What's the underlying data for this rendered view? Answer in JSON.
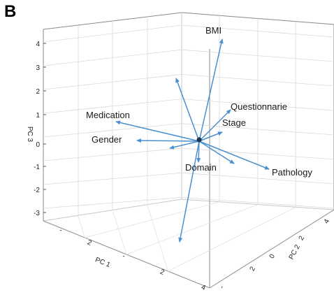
{
  "panel_label": "B",
  "chart_data": {
    "type": "scatter",
    "subtype": "3d-biplot",
    "xlabel": "PC 1",
    "ylabel": "PC 2",
    "zlabel": "PC 3",
    "z_ticks": [
      "4",
      "3",
      "2",
      "1",
      "0",
      "-1",
      "-2",
      "-3"
    ],
    "x_ticks": [
      "-",
      "2",
      "-",
      "2",
      "4"
    ],
    "y_ticks": [
      "-",
      "2",
      "0",
      "2",
      "4"
    ],
    "arrow_color": "#4a8fd0",
    "center_color": "#1f3550",
    "vectors": [
      {
        "name": "BMI",
        "label": "BMI"
      },
      {
        "name": "Questionnarie",
        "label": "Questionnarie"
      },
      {
        "name": "Stage",
        "label": "Stage"
      },
      {
        "name": "Medication",
        "label": "Medication"
      },
      {
        "name": "Gender",
        "label": "Gender"
      },
      {
        "name": "Domain",
        "label": "Domain"
      },
      {
        "name": "Pathology",
        "label": "Pathology"
      },
      {
        "name": "unlabeled-up",
        "label": ""
      },
      {
        "name": "unlabeled-down",
        "label": ""
      },
      {
        "name": "unlabeled-left",
        "label": ""
      },
      {
        "name": "unlabeled-right",
        "label": ""
      }
    ]
  }
}
